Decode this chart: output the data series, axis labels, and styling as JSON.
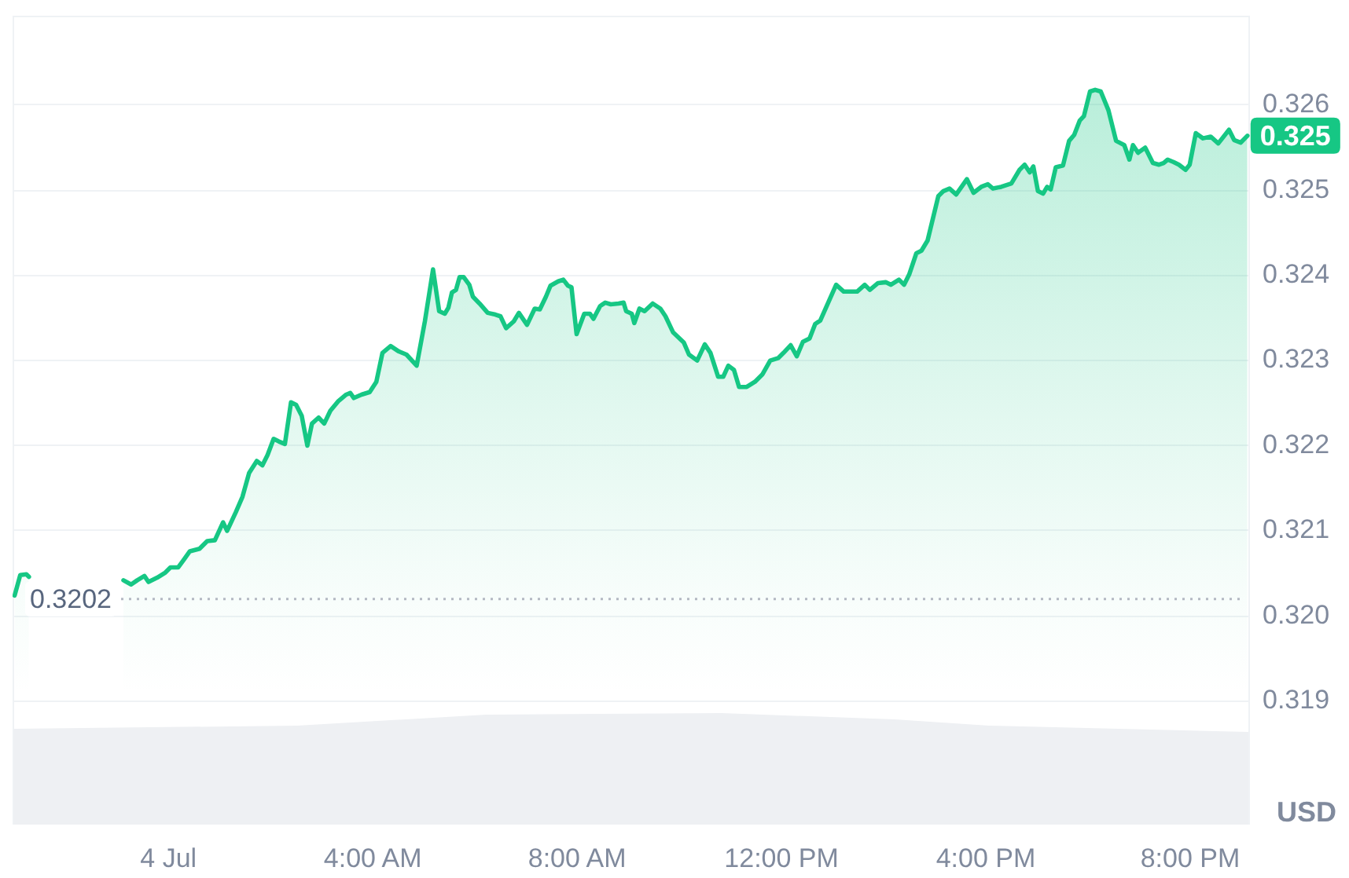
{
  "chart_data": {
    "type": "area",
    "ylabel": "USD",
    "color": "#16c784",
    "marker": "none",
    "grid": "y",
    "xlim": [
      -3.05,
      21.17
    ],
    "ylim": [
      0.31755,
      0.32705
    ],
    "xticks": [
      {
        "value": 0,
        "label": "4 Jul"
      },
      {
        "value": 4,
        "label": "4:00 AM"
      },
      {
        "value": 8,
        "label": "8:00 AM"
      },
      {
        "value": 12,
        "label": "12:00 PM"
      },
      {
        "value": 16,
        "label": "4:00 PM"
      },
      {
        "value": 20,
        "label": "8:00 PM"
      }
    ],
    "yticks": [
      0.319,
      {
        "value": 0.32,
        "label": "0.320"
      },
      0.321,
      0.322,
      0.323,
      0.324,
      0.325,
      0.326
    ],
    "ref_lines": [
      {
        "axis": "y",
        "value": 0.3202,
        "label": "0.3202",
        "line_style": "dotted",
        "color": "#b4b9c3"
      }
    ],
    "annotations": [
      {
        "text": "0.325",
        "x": 21.12,
        "y": 0.32564
      }
    ],
    "x": [
      -3.01,
      -2.9,
      -2.78,
      -2.73,
      -1.75,
      -0.88,
      -0.73,
      -0.61,
      -0.47,
      -0.39,
      -0.22,
      -0.06,
      0.04,
      0.19,
      0.3,
      0.42,
      0.61,
      0.76,
      0.91,
      1.07,
      1.15,
      1.32,
      1.45,
      1.58,
      1.73,
      1.84,
      1.94,
      2.06,
      2.16,
      2.28,
      2.4,
      2.5,
      2.61,
      2.72,
      2.81,
      2.94,
      3.05,
      3.17,
      3.32,
      3.48,
      3.56,
      3.63,
      3.78,
      3.94,
      4.07,
      4.19,
      4.35,
      4.5,
      4.66,
      4.86,
      5.02,
      5.18,
      5.3,
      5.41,
      5.48,
      5.55,
      5.63,
      5.7,
      5.78,
      5.89,
      5.96,
      6.09,
      6.25,
      6.4,
      6.5,
      6.61,
      6.76,
      6.86,
      7.02,
      7.17,
      7.27,
      7.39,
      7.48,
      7.63,
      7.73,
      7.82,
      7.89,
      7.99,
      8.14,
      8.25,
      8.32,
      8.45,
      8.55,
      8.66,
      8.81,
      8.91,
      8.96,
      9.07,
      9.12,
      9.22,
      9.32,
      9.48,
      9.63,
      9.73,
      9.88,
      10.09,
      10.19,
      10.35,
      10.5,
      10.61,
      10.76,
      10.86,
      10.96,
      11.07,
      11.17,
      11.32,
      11.48,
      11.63,
      11.78,
      11.94,
      12.04,
      12.18,
      12.3,
      12.42,
      12.55,
      12.66,
      12.76,
      13.07,
      13.22,
      13.48,
      13.63,
      13.73,
      13.89,
      14.04,
      14.14,
      14.3,
      14.4,
      14.5,
      14.64,
      14.74,
      14.86,
      15.07,
      15.17,
      15.29,
      15.42,
      15.63,
      15.76,
      15.91,
      16.04,
      16.14,
      16.3,
      16.5,
      16.66,
      16.76,
      16.86,
      16.93,
      17.02,
      17.12,
      17.2,
      17.27,
      17.37,
      17.51,
      17.63,
      17.73,
      17.84,
      17.92,
      18.04,
      18.14,
      18.25,
      18.4,
      18.55,
      18.71,
      18.81,
      18.88,
      18.98,
      19.12,
      19.27,
      19.39,
      19.48,
      19.56,
      19.68,
      19.78,
      19.91,
      19.99,
      20.11,
      20.25,
      20.4,
      20.55,
      20.76,
      20.86,
      20.99,
      21.12
    ],
    "values": [
      0.32024,
      0.32048,
      0.32049,
      0.32046,
      null,
      0.32042,
      0.32037,
      0.32042,
      0.32047,
      0.3204,
      0.32045,
      0.32051,
      0.32057,
      0.32057,
      0.32066,
      0.32076,
      0.32079,
      0.32088,
      0.32089,
      0.3211,
      0.321,
      0.32122,
      0.3214,
      0.32168,
      0.32182,
      0.32177,
      0.32189,
      0.32208,
      0.32205,
      0.32202,
      0.32251,
      0.32248,
      0.32235,
      0.322,
      0.32226,
      0.32233,
      0.32226,
      0.32241,
      0.32252,
      0.3226,
      0.32262,
      0.32256,
      0.3226,
      0.32263,
      0.32275,
      0.32309,
      0.32317,
      0.32311,
      0.32307,
      0.32294,
      0.32346,
      0.32407,
      0.32358,
      0.32355,
      0.32362,
      0.3238,
      0.32383,
      0.32398,
      0.32398,
      0.32389,
      0.32375,
      0.32367,
      0.32356,
      0.32354,
      0.32352,
      0.32338,
      0.32346,
      0.32356,
      0.32342,
      0.32361,
      0.3236,
      0.32375,
      0.32388,
      0.32393,
      0.32395,
      0.32388,
      0.32386,
      0.32331,
      0.32355,
      0.32355,
      0.32349,
      0.32364,
      0.32368,
      0.32366,
      0.32367,
      0.32368,
      0.32358,
      0.32355,
      0.32344,
      0.32361,
      0.32358,
      0.32367,
      0.32361,
      0.32352,
      0.32333,
      0.32321,
      0.32307,
      0.323,
      0.32319,
      0.32309,
      0.32281,
      0.32281,
      0.32294,
      0.32289,
      0.32269,
      0.32269,
      0.32275,
      0.32284,
      0.323,
      0.32303,
      0.32309,
      0.32318,
      0.32305,
      0.32322,
      0.32326,
      0.32343,
      0.32347,
      0.32389,
      0.32381,
      0.32381,
      0.32389,
      0.32383,
      0.32391,
      0.32392,
      0.32389,
      0.32395,
      0.32389,
      0.32401,
      0.32426,
      0.32429,
      0.32441,
      0.32493,
      0.32499,
      0.32502,
      0.32495,
      0.32513,
      0.32497,
      0.32504,
      0.32507,
      0.32502,
      0.32504,
      0.32508,
      0.32524,
      0.3253,
      0.32521,
      0.32528,
      0.32499,
      0.32496,
      0.32504,
      0.32501,
      0.32527,
      0.32529,
      0.32558,
      0.32565,
      0.32582,
      0.32587,
      0.32616,
      0.32618,
      0.32616,
      0.32594,
      0.32558,
      0.32553,
      0.32536,
      0.32553,
      0.32544,
      0.3255,
      0.32532,
      0.3253,
      0.32532,
      0.32536,
      0.32533,
      0.3253,
      0.32524,
      0.3253,
      0.32567,
      0.32561,
      0.32563,
      0.32555,
      0.32571,
      0.32559,
      0.32556,
      0.32564
    ]
  }
}
